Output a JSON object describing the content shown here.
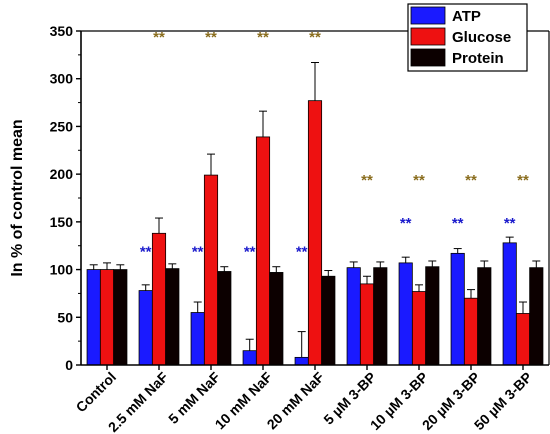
{
  "chart_data": {
    "type": "bar",
    "title": "",
    "ylabel": "In % of control mean",
    "xlabel": "",
    "ylim": [
      0,
      350
    ],
    "yticks": [
      0,
      50,
      100,
      150,
      200,
      250,
      300,
      350
    ],
    "ytick_labels": [
      "0",
      "50",
      "100",
      "150",
      "200",
      "250",
      "300",
      "350"
    ],
    "legend_position": "top-right",
    "categories": [
      "Control",
      "2.5 mM NaF",
      "5 mM NaF",
      "10 mM NaF",
      "20 mM NaF",
      "5 µM 3-BP",
      "10 µM 3-BP",
      "20 µM 3-BP",
      "50 µM 3-BP"
    ],
    "series": [
      {
        "name": "ATP",
        "color": "#1a1aff",
        "values": [
          100,
          78,
          55,
          15,
          8,
          102,
          107,
          117,
          128
        ],
        "errors": [
          5,
          6,
          11,
          12,
          27,
          6,
          6,
          5,
          6
        ]
      },
      {
        "name": "Glucose",
        "color": "#ee1111",
        "values": [
          100,
          138,
          199,
          239,
          277,
          85,
          77,
          70,
          54
        ],
        "errors": [
          7,
          16,
          22,
          27,
          40,
          8,
          7,
          9,
          12
        ]
      },
      {
        "name": "Protein",
        "color": "#0c0000",
        "values": [
          100,
          101,
          98,
          97,
          93,
          102,
          103,
          102,
          102
        ],
        "errors": [
          5,
          5,
          5,
          6,
          6,
          6,
          6,
          7,
          7
        ]
      }
    ],
    "annotations": [
      {
        "category": 1,
        "series": "Glucose",
        "y": 345,
        "text": "**",
        "color": "#8a6d1e"
      },
      {
        "category": 2,
        "series": "Glucose",
        "y": 345,
        "text": "**",
        "color": "#8a6d1e"
      },
      {
        "category": 3,
        "series": "Glucose",
        "y": 345,
        "text": "**",
        "color": "#8a6d1e"
      },
      {
        "category": 4,
        "series": "Glucose",
        "y": 345,
        "text": "**",
        "color": "#8a6d1e"
      },
      {
        "category": 5,
        "series": "Glucose",
        "y": 195,
        "text": "**",
        "color": "#8a6d1e"
      },
      {
        "category": 6,
        "series": "Glucose",
        "y": 195,
        "text": "**",
        "color": "#8a6d1e"
      },
      {
        "category": 7,
        "series": "Glucose",
        "y": 195,
        "text": "**",
        "color": "#8a6d1e"
      },
      {
        "category": 8,
        "series": "Glucose",
        "y": 195,
        "text": "**",
        "color": "#8a6d1e"
      },
      {
        "category": 1,
        "series": "ATP",
        "y": 120,
        "text": "**",
        "color": "#1a1acc"
      },
      {
        "category": 2,
        "series": "ATP",
        "y": 120,
        "text": "**",
        "color": "#1a1acc"
      },
      {
        "category": 3,
        "series": "ATP",
        "y": 120,
        "text": "**",
        "color": "#1a1acc"
      },
      {
        "category": 4,
        "series": "ATP",
        "y": 120,
        "text": "**",
        "color": "#1a1acc"
      },
      {
        "category": 6,
        "series": "ATP",
        "y": 150,
        "text": "**",
        "color": "#1a1acc"
      },
      {
        "category": 7,
        "series": "ATP",
        "y": 150,
        "text": "**",
        "color": "#1a1acc"
      },
      {
        "category": 8,
        "series": "ATP",
        "y": 150,
        "text": "**",
        "color": "#1a1acc"
      }
    ]
  }
}
